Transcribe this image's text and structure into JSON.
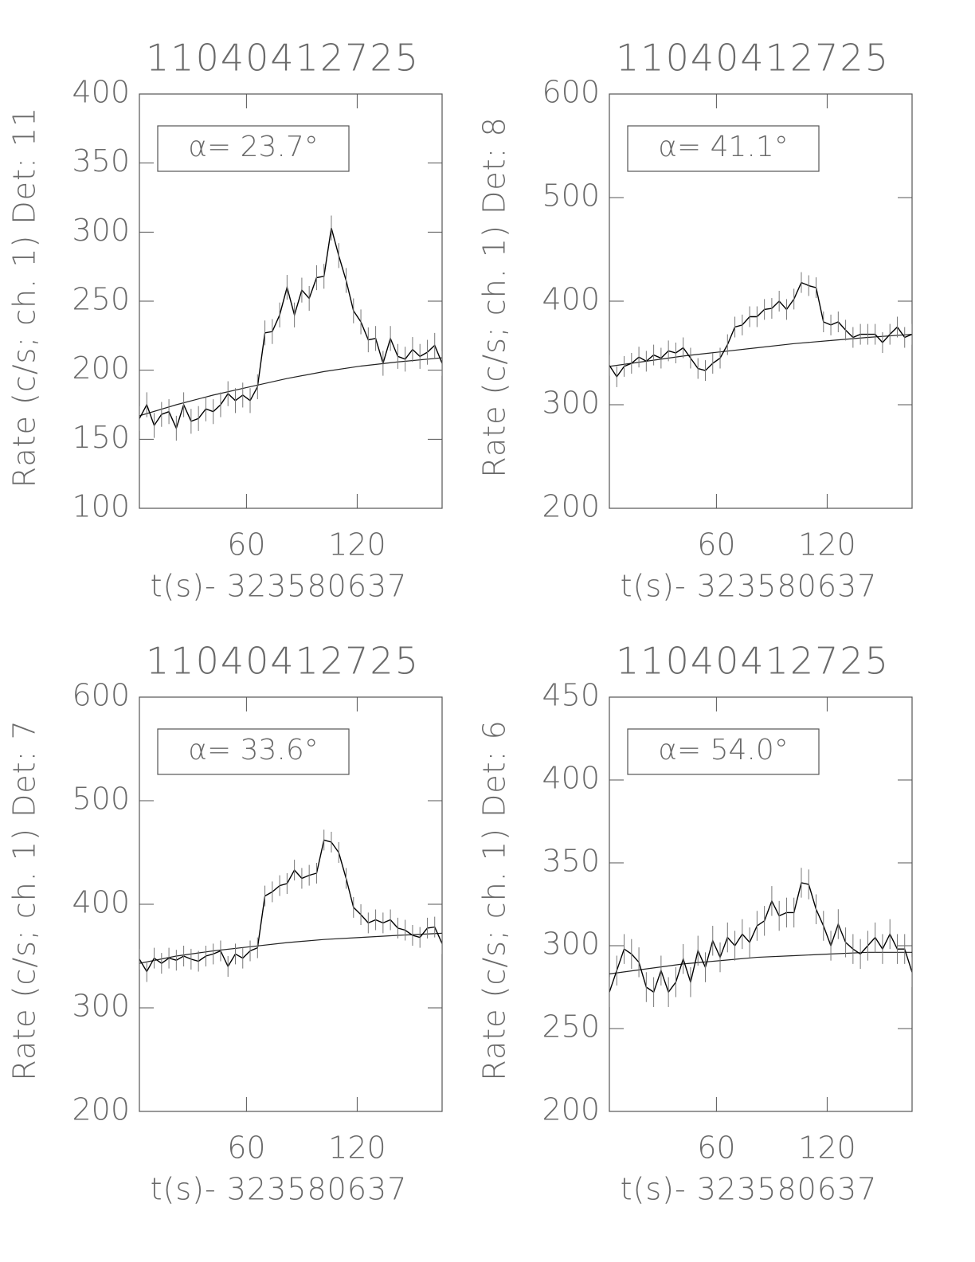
{
  "chart_data": [
    {
      "type": "line",
      "title": "11040412725",
      "xlabel": "t(s)- 323580637",
      "ylabel": "Rate (c/s; ch. 1) Det: 11",
      "annotation": "α= 23.7°",
      "xlim": [
        2,
        166
      ],
      "xticks": [
        60,
        120
      ],
      "ylim": [
        100,
        400
      ],
      "yticks": [
        100,
        150,
        200,
        250,
        300,
        350,
        400
      ],
      "x": [
        2,
        6,
        10,
        14,
        18,
        22,
        26,
        30,
        34,
        38,
        42,
        46,
        50,
        54,
        58,
        62,
        66,
        70,
        74,
        78,
        82,
        86,
        90,
        94,
        98,
        102,
        106,
        110,
        114,
        118,
        122,
        126,
        130,
        134,
        138,
        142,
        146,
        150,
        154,
        158,
        162,
        166
      ],
      "values": [
        165,
        175,
        160,
        168,
        170,
        158,
        175,
        163,
        165,
        172,
        170,
        175,
        183,
        178,
        182,
        178,
        188,
        227,
        228,
        240,
        260,
        240,
        258,
        252,
        267,
        268,
        303,
        283,
        265,
        243,
        235,
        222,
        223,
        205,
        223,
        210,
        208,
        215,
        210,
        213,
        218,
        205
      ],
      "error": 9,
      "fit_x": [
        2,
        22,
        42,
        62,
        82,
        102,
        122,
        142,
        166
      ],
      "fit": [
        167,
        175,
        182,
        188,
        194,
        199,
        203,
        206,
        209
      ],
      "color": "#000000"
    },
    {
      "type": "line",
      "title": "11040412725",
      "xlabel": "t(s)- 323580637",
      "ylabel": "Rate (c/s; ch. 1) Det: 8",
      "annotation": "α= 41.1°",
      "xlim": [
        2,
        166
      ],
      "xticks": [
        60,
        120
      ],
      "ylim": [
        200,
        600
      ],
      "yticks": [
        200,
        300,
        400,
        500,
        600
      ],
      "x": [
        2,
        6,
        10,
        14,
        18,
        22,
        26,
        30,
        34,
        38,
        42,
        46,
        50,
        54,
        58,
        62,
        66,
        70,
        74,
        78,
        82,
        86,
        90,
        94,
        98,
        102,
        106,
        110,
        114,
        118,
        122,
        126,
        130,
        134,
        138,
        142,
        146,
        150,
        154,
        158,
        162,
        166
      ],
      "values": [
        338,
        327,
        337,
        340,
        346,
        342,
        348,
        345,
        352,
        350,
        355,
        345,
        335,
        333,
        340,
        345,
        358,
        375,
        377,
        385,
        385,
        392,
        393,
        400,
        392,
        402,
        418,
        415,
        413,
        380,
        377,
        380,
        372,
        365,
        368,
        368,
        368,
        360,
        368,
        375,
        365,
        368
      ],
      "error": 10,
      "fit_x": [
        2,
        22,
        42,
        62,
        82,
        102,
        122,
        142,
        166
      ],
      "fit": [
        337,
        342,
        347,
        351,
        355,
        359,
        362,
        365,
        368
      ],
      "color": "#000000"
    },
    {
      "type": "line",
      "title": "11040412725",
      "xlabel": "t(s)- 323580637",
      "ylabel": "Rate (c/s; ch. 1) Det: 7",
      "annotation": "α= 33.6°",
      "xlim": [
        2,
        166
      ],
      "xticks": [
        60,
        120
      ],
      "ylim": [
        200,
        600
      ],
      "yticks": [
        200,
        300,
        400,
        500,
        600
      ],
      "x": [
        2,
        6,
        10,
        14,
        18,
        22,
        26,
        30,
        34,
        38,
        42,
        46,
        50,
        54,
        58,
        62,
        66,
        70,
        74,
        78,
        82,
        86,
        90,
        94,
        98,
        102,
        106,
        110,
        114,
        118,
        122,
        126,
        130,
        134,
        138,
        142,
        146,
        150,
        154,
        158,
        162,
        166
      ],
      "values": [
        347,
        335,
        348,
        343,
        348,
        346,
        350,
        347,
        345,
        350,
        352,
        355,
        340,
        352,
        348,
        355,
        358,
        408,
        412,
        418,
        420,
        433,
        425,
        428,
        430,
        462,
        460,
        450,
        425,
        397,
        390,
        382,
        385,
        382,
        385,
        377,
        375,
        370,
        368,
        377,
        378,
        362
      ],
      "error": 10,
      "fit_x": [
        2,
        22,
        42,
        62,
        82,
        102,
        122,
        142,
        166
      ],
      "fit": [
        343,
        350,
        355,
        359,
        363,
        366,
        368,
        370,
        372
      ],
      "color": "#000000"
    },
    {
      "type": "line",
      "title": "11040412725",
      "xlabel": "t(s)- 323580637",
      "ylabel": "Rate (c/s; ch. 1) Det: 6",
      "annotation": "α= 54.0°",
      "xlim": [
        2,
        166
      ],
      "xticks": [
        60,
        120
      ],
      "ylim": [
        200,
        450
      ],
      "yticks": [
        200,
        250,
        300,
        350,
        400,
        450
      ],
      "x": [
        2,
        6,
        10,
        14,
        18,
        22,
        26,
        30,
        34,
        38,
        42,
        46,
        50,
        54,
        58,
        62,
        66,
        70,
        74,
        78,
        82,
        86,
        90,
        94,
        98,
        102,
        106,
        110,
        114,
        118,
        122,
        126,
        130,
        134,
        138,
        142,
        146,
        150,
        154,
        158,
        162,
        166
      ],
      "values": [
        272,
        285,
        298,
        295,
        290,
        275,
        272,
        285,
        272,
        278,
        292,
        278,
        297,
        287,
        303,
        293,
        305,
        300,
        307,
        302,
        312,
        315,
        327,
        318,
        320,
        320,
        338,
        337,
        322,
        312,
        300,
        313,
        302,
        298,
        295,
        300,
        305,
        298,
        307,
        298,
        298,
        284
      ],
      "error": 9,
      "fit_x": [
        2,
        22,
        42,
        62,
        82,
        102,
        122,
        142,
        166
      ],
      "fit": [
        283,
        286,
        289,
        291,
        293,
        294,
        295,
        296,
        296
      ],
      "color": "#000000"
    }
  ]
}
